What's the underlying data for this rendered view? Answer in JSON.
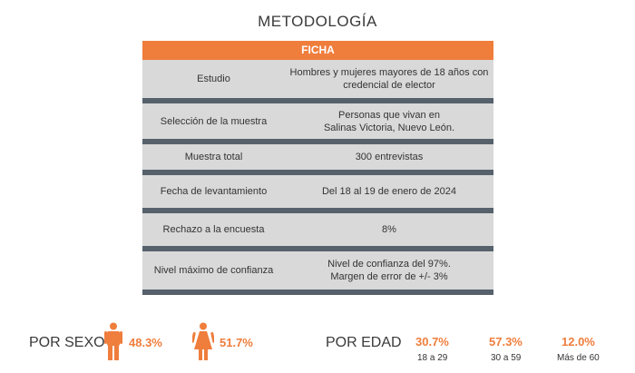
{
  "title": "METODOLOGÍA",
  "ficha": {
    "header": "FICHA",
    "rows": [
      {
        "label": "Estudio",
        "value": "Hombres y mujeres mayores de 18 años con\ncredencial de elector"
      },
      {
        "label": "Selección de la muestra",
        "value": "Personas que vivan en\nSalinas Victoria, Nuevo León."
      },
      {
        "label": "Muestra total",
        "value": "300 entrevistas"
      },
      {
        "label": "Fecha de levantamiento",
        "value": "Del 18 al 19 de enero de 2024"
      },
      {
        "label": "Rechazo a la encuesta",
        "value": "8%"
      },
      {
        "label": "Nivel máximo de confianza",
        "value": "Nivel de confianza del 97%.\nMargen de error de +/- 3%"
      }
    ]
  },
  "sexo": {
    "label": "POR SEXO",
    "male_pct": "48.3%",
    "female_pct": "51.7%",
    "icons": [
      "male-icon",
      "female-icon"
    ],
    "accent": "#ef7d3c"
  },
  "edad": {
    "label": "POR EDAD",
    "groups": [
      {
        "pct": "30.7%",
        "range": "18 a 29"
      },
      {
        "pct": "57.3%",
        "range": "30 a 59"
      },
      {
        "pct": "12.0%",
        "range": "Más de 60"
      }
    ]
  },
  "colors": {
    "accent": "#ef7d3c",
    "row_bg": "#d9d9d9",
    "separator": "#56616c"
  }
}
